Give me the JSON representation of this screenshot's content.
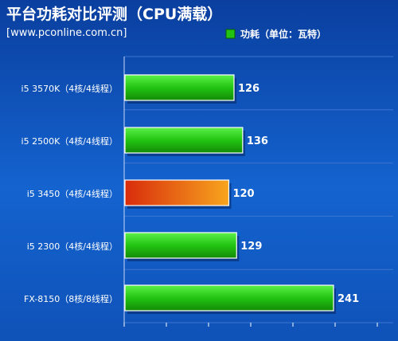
{
  "chart_data": {
    "type": "bar",
    "orientation": "horizontal",
    "title": "平台功耗对比评测（CPU满载）",
    "subtitle": "[www.pconline.com.cn]",
    "legend": {
      "label": "功耗（单位：瓦特）",
      "color": "#22c411",
      "placement": "top-right"
    },
    "categories": [
      "i5 3570K（4核/4线程）",
      "i5 2500K（4核/4线程）",
      "i5 3450（4核/4线程）",
      "i5 2300（4核/4线程）",
      "FX-8150（8核/8线程）"
    ],
    "values": [
      126,
      136,
      120,
      129,
      241
    ],
    "data_labels": [
      "126",
      "136",
      "120",
      "129",
      "241"
    ],
    "highlight_index": 2,
    "colors": {
      "bar": "#1fbd10",
      "bar_light": "#4ee43a",
      "highlight_start": "#d82c0c",
      "highlight_end": "#f7a51e",
      "grid": "#3c74d0",
      "label_text": "#ffffff",
      "title_text": "#ffffff"
    },
    "xlim": [
      0,
      250
    ],
    "grid": true
  }
}
